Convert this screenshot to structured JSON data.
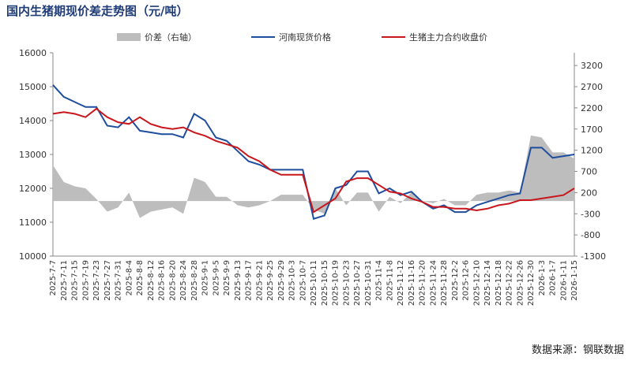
{
  "chart_data": {
    "type": "line",
    "title": "国内生猪期现价差走势图（元/吨）",
    "source": "数据来源：钢联数据",
    "categories": [
      "2025-7-7",
      "2025-7-11",
      "2025-7-15",
      "2025-7-19",
      "2025-7-23",
      "2025-7-27",
      "2025-7-31",
      "2025-8-4",
      "2025-8-8",
      "2025-8-12",
      "2025-8-16",
      "2025-8-20",
      "2025-8-24",
      "2025-8-28",
      "2025-9-1",
      "2025-9-5",
      "2025-9-9",
      "2025-9-13",
      "2025-9-17",
      "2025-9-21",
      "2025-9-25",
      "2025-9-29",
      "2025-10-3",
      "2025-10-7",
      "2025-10-11",
      "2025-10-15",
      "2025-10-19",
      "2025-10-23",
      "2025-10-27",
      "2025-10-31",
      "2025-11-4",
      "2025-11-8",
      "2025-11-12",
      "2025-11-16",
      "2025-11-20",
      "2025-11-24",
      "2025-11-28",
      "2025-12-2",
      "2025-12-6",
      "2025-12-10",
      "2025-12-14",
      "2025-12-18",
      "2025-12-22",
      "2025-12-26",
      "2025-12-30",
      "2026-1-3",
      "2026-1-7",
      "2026-1-11",
      "2026-1-15"
    ],
    "series": [
      {
        "name": "价差（右轴）",
        "type": "area",
        "axis": "y2",
        "color": "#bdbdbd",
        "values": [
          850,
          450,
          350,
          300,
          50,
          -250,
          -150,
          200,
          -400,
          -250,
          -200,
          -150,
          -300,
          550,
          450,
          100,
          100,
          -100,
          -150,
          -100,
          0,
          150,
          150,
          150,
          -200,
          -300,
          300,
          -100,
          200,
          200,
          -250,
          100,
          -50,
          200,
          0,
          -50,
          50,
          -100,
          -100,
          150,
          200,
          200,
          250,
          200,
          1550,
          1500,
          1150,
          1150,
          1000
        ]
      },
      {
        "name": "河南现货价格",
        "type": "line",
        "color": "#1f4e9e",
        "values": [
          15050,
          14700,
          14550,
          14400,
          14400,
          13850,
          13800,
          14100,
          13700,
          13650,
          13600,
          13600,
          13500,
          14200,
          14000,
          13500,
          13400,
          13100,
          12800,
          12700,
          12550,
          12550,
          12550,
          12550,
          11100,
          11200,
          12000,
          12100,
          12500,
          12500,
          11850,
          12000,
          11800,
          11900,
          11600,
          11400,
          11500,
          11300,
          11300,
          11500,
          11600,
          11700,
          11800,
          11850,
          13200,
          13200,
          12900,
          12950,
          13000
        ]
      },
      {
        "name": "生猪主力合约收盘价",
        "type": "line",
        "color": "#c8161d",
        "values": [
          14200,
          14250,
          14200,
          14100,
          14350,
          14100,
          13950,
          13900,
          14100,
          13900,
          13800,
          13750,
          13800,
          13650,
          13550,
          13400,
          13300,
          13200,
          12950,
          12800,
          12550,
          12400,
          12400,
          12400,
          11300,
          11500,
          11700,
          12200,
          12300,
          12300,
          12100,
          11900,
          11850,
          11700,
          11600,
          11450,
          11450,
          11400,
          11400,
          11350,
          11400,
          11500,
          11550,
          11650,
          11650,
          11700,
          11750,
          11800,
          12000
        ]
      }
    ],
    "ylim": [
      10000,
      16000
    ],
    "yticks": [
      10000,
      11000,
      12000,
      13000,
      14000,
      15000,
      16000
    ],
    "y2lim": [
      -1300,
      3500
    ],
    "y2ticks": [
      -1300,
      -800,
      -300,
      200,
      700,
      1200,
      1700,
      2200,
      2700,
      3200
    ]
  }
}
